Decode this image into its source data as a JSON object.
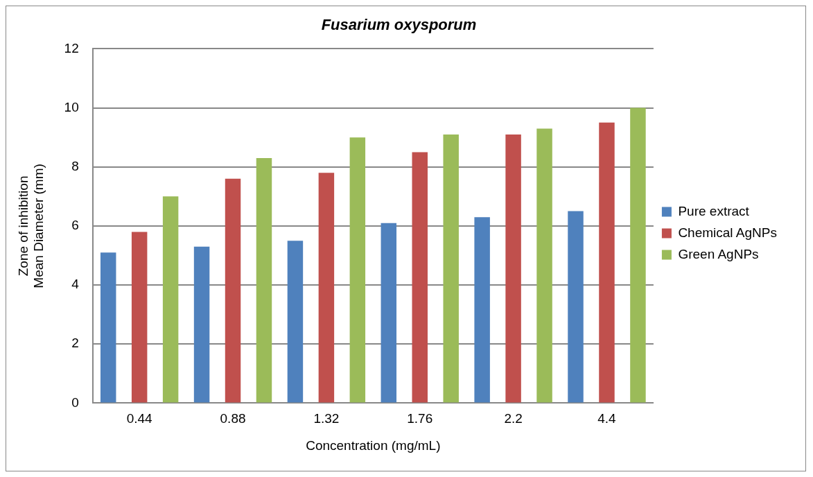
{
  "chart_data": {
    "type": "bar",
    "title": "Fusarium oxysporum",
    "xlabel": "Concentration (mg/mL)",
    "ylabel": "Zone of inhibition\nMean Diameter (mm)",
    "categories": [
      "0.44",
      "0.88",
      "1.32",
      "1.76",
      "2.2",
      "4.4"
    ],
    "series": [
      {
        "name": "Pure extract",
        "color": "#4f81bd",
        "values": [
          5.1,
          5.3,
          5.5,
          6.1,
          6.3,
          6.5
        ]
      },
      {
        "name": "Chemical AgNPs",
        "color": "#c0504d",
        "values": [
          5.8,
          7.6,
          7.8,
          8.5,
          9.1,
          9.5
        ]
      },
      {
        "name": "Green AgNPs",
        "color": "#9bbb59",
        "values": [
          7,
          8.3,
          9,
          9.1,
          9.3,
          10
        ]
      }
    ],
    "ylim": [
      0,
      12
    ],
    "yticks": [
      0,
      2,
      4,
      6,
      8,
      10,
      12
    ],
    "grid": "y",
    "legend": "right"
  }
}
